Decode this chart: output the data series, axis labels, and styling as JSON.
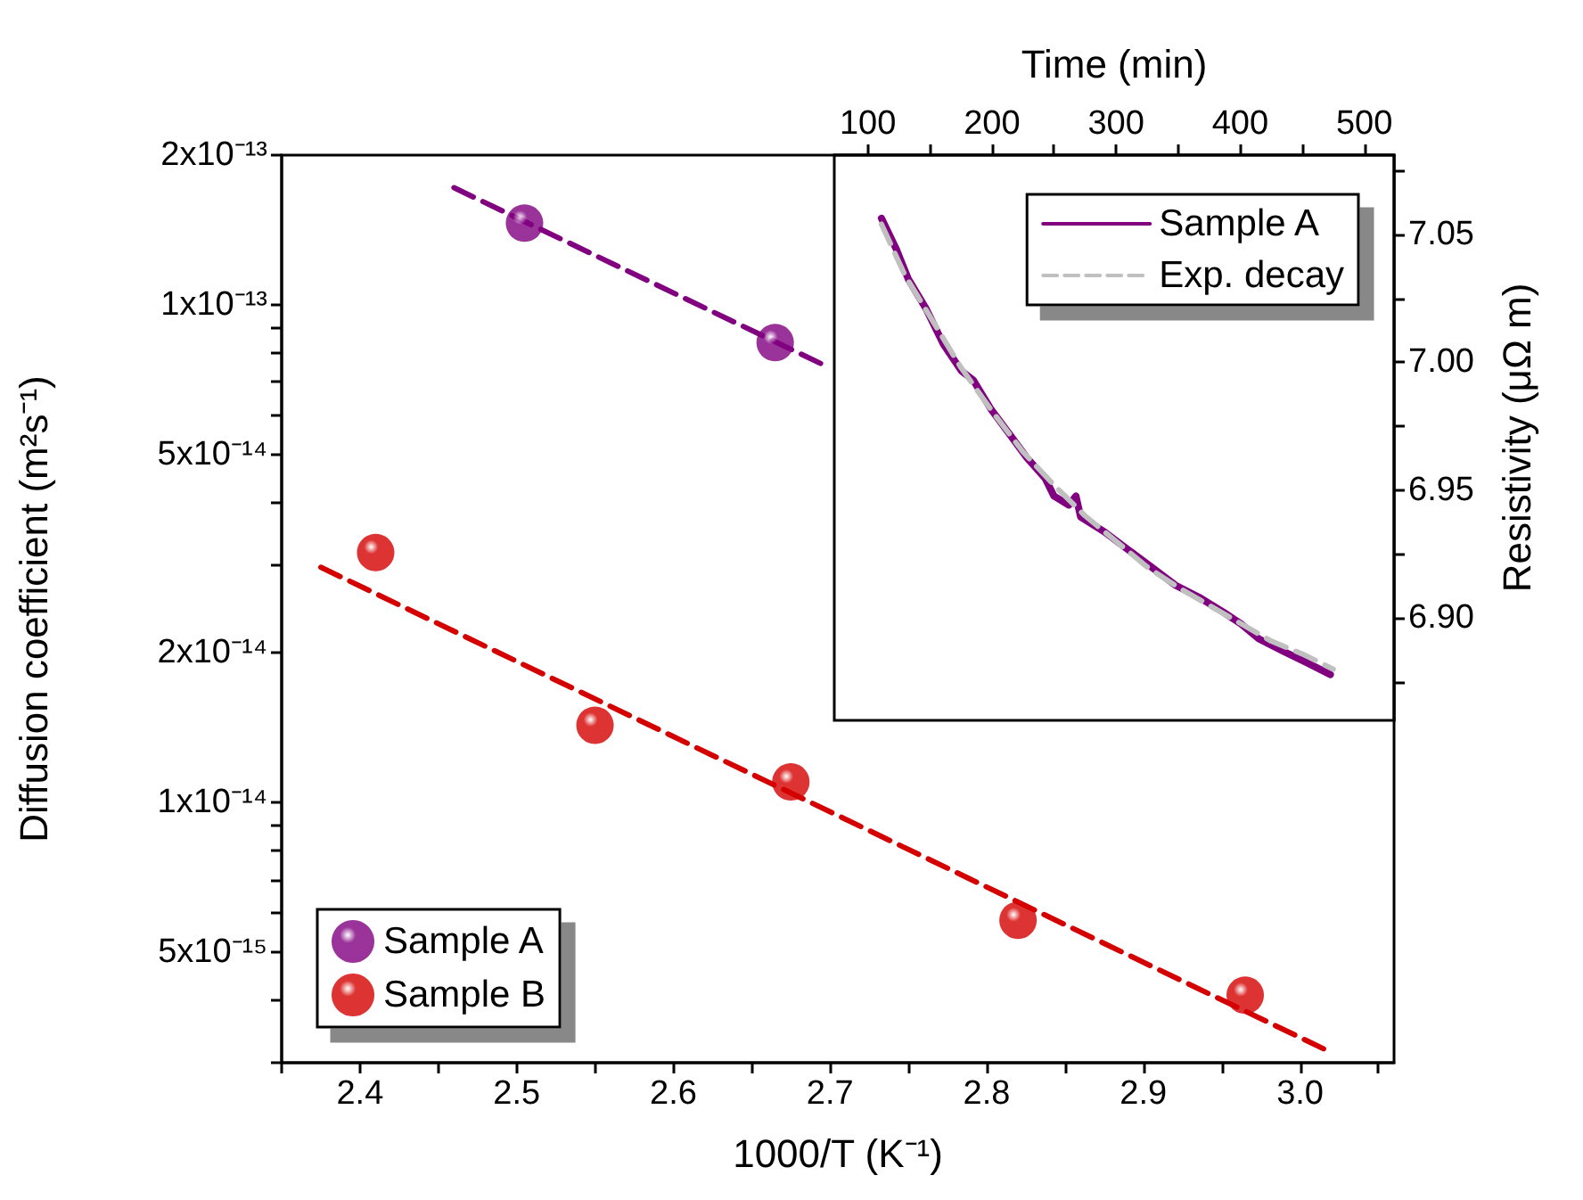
{
  "chart_data": [
    {
      "type": "scatter",
      "xlabel": "1000/T (K⁻¹)",
      "ylabel": "Diffusion coefficient (m²s⁻¹)",
      "log": "y",
      "marker": "circle",
      "legend": "bottom left",
      "grid": false,
      "xlim": [
        2.35,
        3.06
      ],
      "xticks": [
        {
          "value": 2.35,
          "label": null
        },
        2.4,
        {
          "value": 2.45,
          "label": null
        },
        2.5,
        {
          "value": 2.55,
          "label": null
        },
        2.6,
        {
          "value": 2.65,
          "label": null
        },
        2.7,
        {
          "value": 2.75,
          "label": null
        },
        2.8,
        {
          "value": 2.85,
          "label": null
        },
        2.9,
        {
          "value": 2.95,
          "label": null
        },
        {
          "value": 3.0,
          "label": "3.0"
        },
        {
          "value": 3.05,
          "label": null
        }
      ],
      "ylim": [
        3e-15,
        2e-13
      ],
      "yticks": [
        {
          "value": 3e-15,
          "label": null
        },
        {
          "value": 4e-15,
          "label": null
        },
        {
          "value": 5e-15,
          "label": "5x10⁻¹⁵"
        },
        {
          "value": 6e-15,
          "label": null
        },
        {
          "value": 7e-15,
          "label": null
        },
        {
          "value": 8e-15,
          "label": null
        },
        {
          "value": 9e-15,
          "label": null
        },
        {
          "value": 1e-14,
          "label": "1x10⁻¹⁴"
        },
        {
          "value": 2e-14,
          "label": "2x10⁻¹⁴"
        },
        {
          "value": 3e-14,
          "label": null
        },
        {
          "value": 4e-14,
          "label": null
        },
        {
          "value": 5e-14,
          "label": "5x10⁻¹⁴"
        },
        {
          "value": 6e-14,
          "label": null
        },
        {
          "value": 7e-14,
          "label": null
        },
        {
          "value": 8e-14,
          "label": null
        },
        {
          "value": 9e-14,
          "label": null
        },
        {
          "value": 1e-13,
          "label": "1x10⁻¹³"
        },
        {
          "value": 2e-13,
          "label": "2x10⁻¹³"
        }
      ],
      "series": [
        {
          "name": "Sample A",
          "color": "#800080",
          "x": [
            2.505,
            2.665
          ],
          "values": [
            1.46e-13,
            8.4e-14
          ]
        },
        {
          "name": "Sample B",
          "color": "#d40000",
          "x": [
            2.41,
            2.55,
            2.675,
            2.82,
            2.965
          ],
          "values": [
            3.18e-14,
            1.43e-14,
            1.1e-14,
            5.8e-15,
            4.1e-15
          ]
        },
        {
          "type": "line",
          "color": "#800080",
          "line_style": "dashed",
          "marker": "none",
          "x": [
            2.46,
            2.695
          ],
          "values": [
            1.72e-13,
            7.6e-14
          ]
        },
        {
          "type": "line",
          "color": "#d40000",
          "line_style": "dashed",
          "marker": "none",
          "x": [
            2.375,
            3.015
          ],
          "values": [
            2.97e-14,
            3.2e-15
          ]
        }
      ]
    },
    {
      "type": "line",
      "xlabel": "Time (min)",
      "ylabel": "Resistivity (μΩ m)",
      "legend": "top right",
      "grid": false,
      "marker": "none",
      "xlim": [
        73,
        524
      ],
      "xticks": [
        100,
        {
          "value": 150,
          "label": null
        },
        200,
        {
          "value": 250,
          "label": null
        },
        300,
        {
          "value": 350,
          "label": null
        },
        400,
        {
          "value": 450,
          "label": null
        },
        500
      ],
      "ylim": [
        6.86,
        7.081
      ],
      "yticks": [
        {
          "value": 6.875,
          "label": null
        },
        {
          "value": 6.9,
          "label": "6.90"
        },
        {
          "value": 6.925,
          "label": null
        },
        6.95,
        {
          "value": 6.975,
          "label": null
        },
        {
          "value": 7.0,
          "label": "7.00"
        },
        {
          "value": 7.025,
          "label": null
        },
        7.05,
        {
          "value": 7.075,
          "label": null
        }
      ],
      "series": [
        {
          "name": "Sample A",
          "color": "#800080",
          "line_style": "solid",
          "x": [
            111,
            123,
            132.6,
            147,
            161,
            175.7,
            185,
            199.6,
            214,
            228,
            242.8,
            250,
            262,
            267.7,
            271.5,
            290.7,
            309.8,
            329,
            348,
            367,
            386.5,
            400.8,
            415,
            434,
            453.5,
            472.7
          ],
          "values": [
            7.0563,
            7.0442,
            7.0326,
            7.0209,
            7.007,
            6.9965,
            6.993,
            6.9814,
            6.972,
            6.9628,
            6.9547,
            6.9477,
            6.9442,
            6.9477,
            6.9395,
            6.9337,
            6.9267,
            6.9198,
            6.9128,
            6.9081,
            6.9023,
            6.8977,
            6.8919,
            6.8872,
            6.8826,
            6.8779
          ]
        },
        {
          "name": "Exp. decay",
          "color": "#c0c0c0",
          "line_style": "dashed",
          "x": [
            111,
            130,
            150,
            175,
            200,
            225,
            250,
            275,
            300,
            325,
            350,
            375,
            400,
            425,
            450,
            475
          ],
          "values": [
            7.054,
            7.034,
            7.018,
            6.998,
            6.981,
            6.965,
            6.952,
            6.94,
            6.93,
            6.92,
            6.912,
            6.905,
            6.898,
            6.891,
            6.886,
            6.88
          ]
        }
      ]
    }
  ]
}
